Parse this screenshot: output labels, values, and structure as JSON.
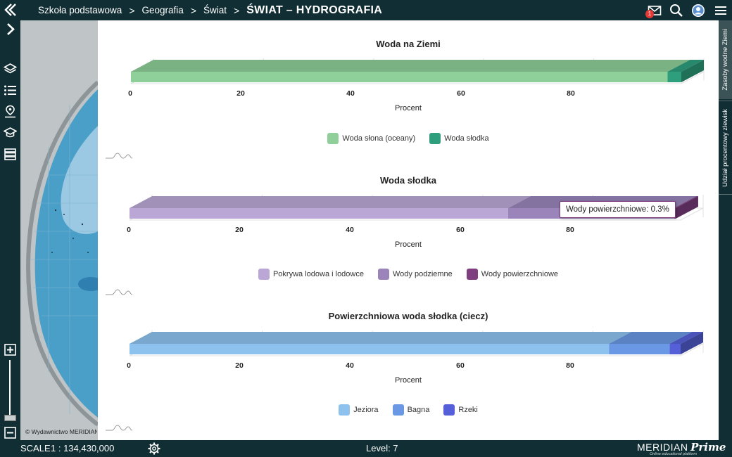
{
  "breadcrumb": {
    "items": [
      "Szkoła podstawowa",
      "Geografia",
      "Świat"
    ],
    "separator": ">",
    "title": "ŚWIAT – HYDROGRAFIA"
  },
  "topbar": {
    "mail_badge": "1",
    "icons": [
      "back-icon",
      "mail-icon",
      "search-icon",
      "user-icon",
      "menu-icon"
    ]
  },
  "leftbar": {
    "icons": [
      "chevron-right-icon",
      "layers-icon",
      "list-icon",
      "map-pin-icon",
      "graduation-cap-icon",
      "stack-icon"
    ],
    "zoom_in": "+",
    "zoom_out": "−"
  },
  "map": {
    "copyright": "© Wydawnictwo MERIDIAN"
  },
  "rightbar": {
    "tabs": [
      "Zasoby wodne Ziemi",
      "Udział procentowy zlewisk"
    ]
  },
  "bottombar": {
    "scale_label": "SCALE",
    "scale_value": "1 : 134,430,000",
    "level": "Level: 7",
    "logo_main": "MERIDIAN",
    "logo_prime": "Prime",
    "logo_sub": "Online educational platform"
  },
  "tooltip": {
    "text": "Wody powierzchniowe: 0.3%"
  },
  "colors": {
    "salt": "#8fcf9a",
    "fresh": "#2e9e7c",
    "ice": "#bba7d6",
    "ground": "#9a84ba",
    "surface": "#7e3e80",
    "lakes": "#8dc2ee",
    "swamps": "#6a98e4",
    "rivers": "#5560d8"
  },
  "chart_data": [
    {
      "type": "bar",
      "orientation": "horizontal",
      "stacked": true,
      "title": "Woda na Ziemi",
      "xlabel": "Procent",
      "xlim": [
        0,
        100
      ],
      "ticks": [
        "0",
        "20",
        "40",
        "60",
        "80"
      ],
      "series": [
        {
          "name": "Woda słona (oceany)",
          "values": [
            97.5
          ],
          "color": "#8fcf9a"
        },
        {
          "name": "Woda słodka",
          "values": [
            2.5
          ],
          "color": "#2e9e7c"
        }
      ]
    },
    {
      "type": "bar",
      "orientation": "horizontal",
      "stacked": true,
      "title": "Woda słodka",
      "xlabel": "Procent",
      "xlim": [
        0,
        100
      ],
      "ticks": [
        "0",
        "20",
        "40",
        "60",
        "80"
      ],
      "series": [
        {
          "name": "Pokrywa lodowa i lodowce",
          "values": [
            68.7
          ],
          "color": "#bba7d6"
        },
        {
          "name": "Wody podziemne",
          "values": [
            30.1
          ],
          "color": "#9a84ba"
        },
        {
          "name": "Wody powierzchniowe",
          "values": [
            0.3
          ],
          "color": "#7e3e80"
        }
      ]
    },
    {
      "type": "bar",
      "orientation": "horizontal",
      "stacked": true,
      "title": "Powierzchniowa woda słodka (ciecz)",
      "xlabel": "Procent",
      "xlim": [
        0,
        100
      ],
      "ticks": [
        "0",
        "20",
        "40",
        "60",
        "80"
      ],
      "series": [
        {
          "name": "Jeziora",
          "values": [
            87
          ],
          "color": "#8dc2ee"
        },
        {
          "name": "Bagna",
          "values": [
            11
          ],
          "color": "#6a98e4"
        },
        {
          "name": "Rzeki",
          "values": [
            2
          ],
          "color": "#5560d8"
        }
      ]
    }
  ]
}
